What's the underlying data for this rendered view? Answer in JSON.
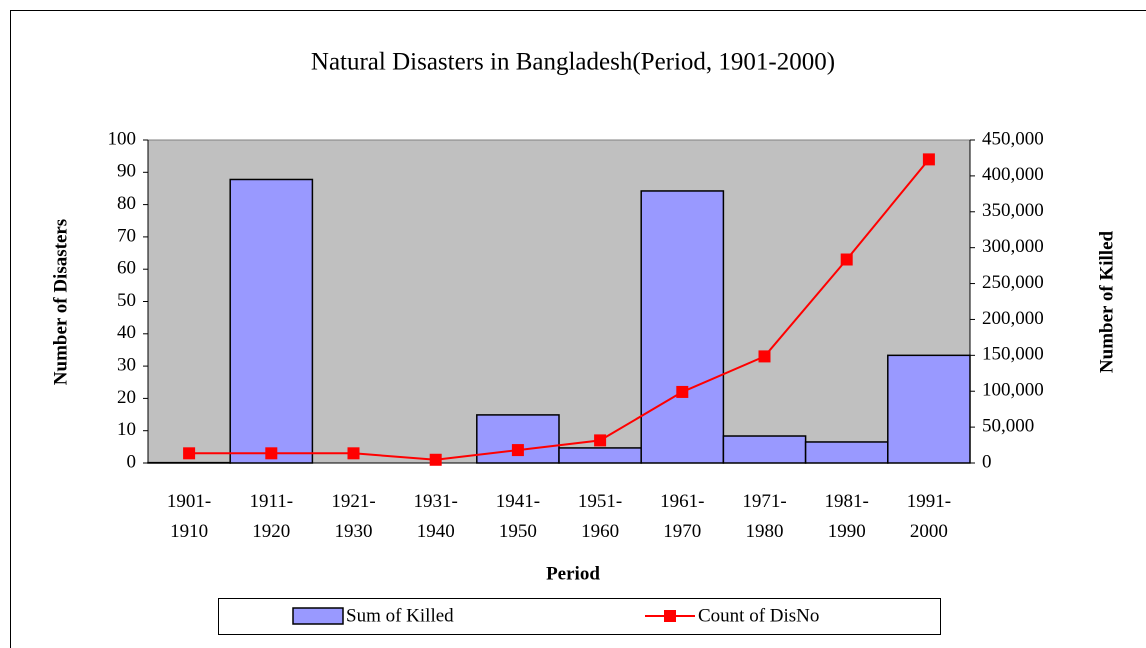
{
  "chart_data": {
    "type": "bar_line",
    "title": "Natural Disasters in Bangladesh(Period, 1901-2000)",
    "x_label": "Period",
    "y_label": "Number of Disasters",
    "y2_label": "Number of Killed",
    "categories": [
      "1901-1910",
      "1911-1920",
      "1921-1930",
      "1931-1940",
      "1941-1950",
      "1951-1960",
      "1961-1970",
      "1971-1980",
      "1981-1990",
      "1991-2000"
    ],
    "series": [
      {
        "name": "Sum of Killed",
        "type": "bar",
        "axis": "y2",
        "color": "#9999ff",
        "values": [
          500,
          395000,
          0,
          0,
          67000,
          21000,
          379000,
          37600,
          29300,
          150000
        ]
      },
      {
        "name": "Count of DisNo",
        "type": "line",
        "axis": "y",
        "color": "#ff0000",
        "values": [
          3,
          3,
          3,
          1,
          4,
          7,
          22,
          33,
          63,
          94
        ]
      }
    ],
    "ylim": [
      0,
      100
    ],
    "yticks": [
      0,
      10,
      20,
      30,
      40,
      50,
      60,
      70,
      80,
      90,
      100
    ],
    "y2lim": [
      0,
      450000
    ],
    "y2ticks": [
      0,
      {
        "value": 50000,
        "label": "50,000"
      },
      {
        "value": 100000,
        "label": "100,000"
      },
      {
        "value": 150000,
        "label": "150,000"
      },
      {
        "value": 200000,
        "label": "200,000"
      },
      {
        "value": 250000,
        "label": "250,000"
      },
      {
        "value": 300000,
        "label": "300,000"
      },
      {
        "value": 350000,
        "label": "350,000"
      },
      {
        "value": 400000,
        "label": "400,000"
      },
      {
        "value": 450000,
        "label": "450,000"
      }
    ],
    "plot_background": "#c0c0c0",
    "legend": "bottom"
  }
}
